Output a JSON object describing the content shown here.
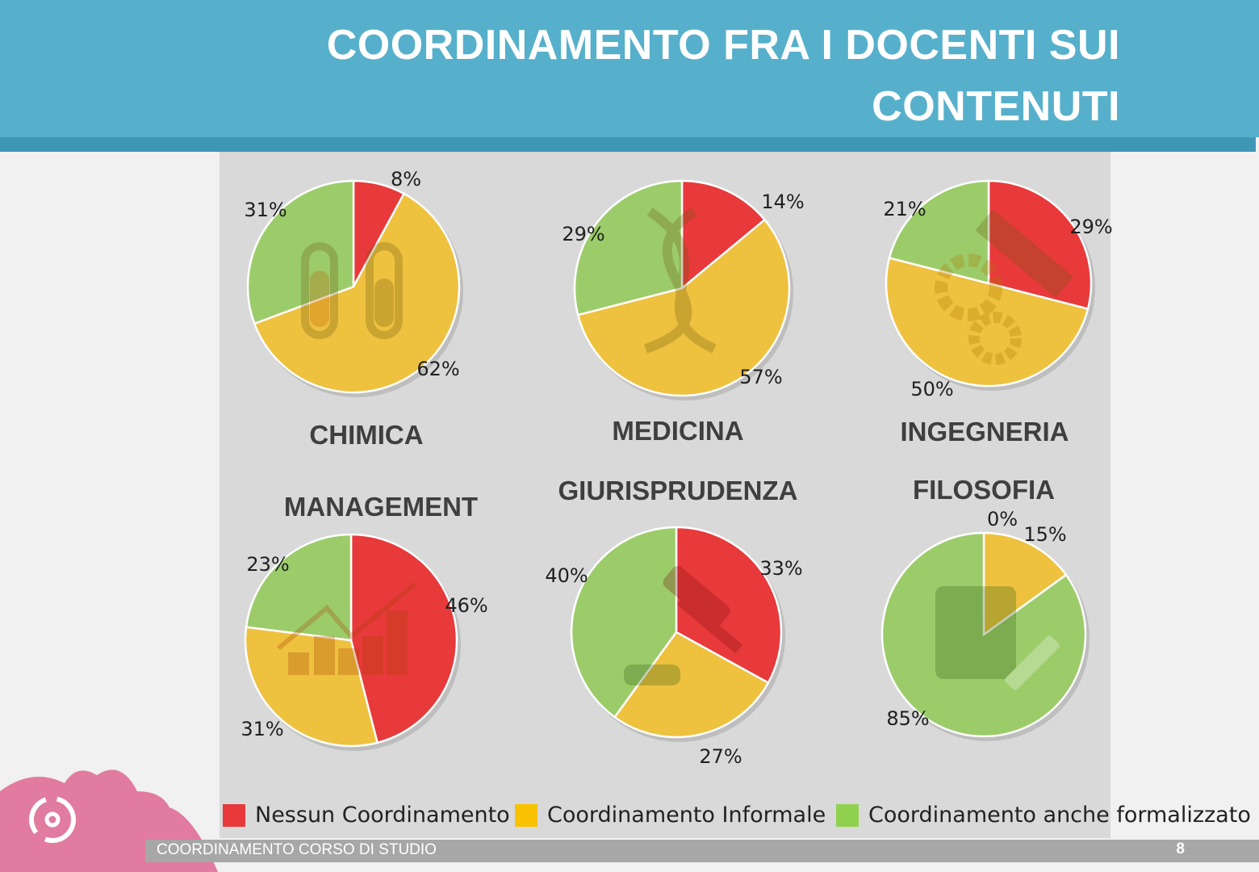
{
  "header": {
    "title_line1": "COORDINAMENTO FRA I DOCENTI SUI",
    "title_line2": "CONTENUTI"
  },
  "colors": {
    "header": "#56b0cb",
    "red": "#e8393b",
    "yellow": "#eec13f",
    "green": "#9ccc6a"
  },
  "chart_data": [
    {
      "type": "pie",
      "title": "CHIMICA",
      "labels": [
        "Nessun Coordinamento",
        "Coordinamento Informale",
        "Coordinamento anche formalizzato"
      ],
      "values": [
        8,
        62,
        31
      ],
      "value_labels": [
        "8%",
        "62%",
        "31%"
      ],
      "icon": "test-tubes-icon"
    },
    {
      "type": "pie",
      "title": "MEDICINA",
      "labels": [
        "Nessun Coordinamento",
        "Coordinamento Informale",
        "Coordinamento anche formalizzato"
      ],
      "values": [
        14,
        57,
        29
      ],
      "value_labels": [
        "14%",
        "57%",
        "29%"
      ],
      "icon": "dna-icon"
    },
    {
      "type": "pie",
      "title": "INGEGNERIA",
      "labels": [
        "Nessun Coordinamento",
        "Coordinamento Informale",
        "Coordinamento anche formalizzato"
      ],
      "values": [
        29,
        50,
        21
      ],
      "value_labels": [
        "29%",
        "50%",
        "21%"
      ],
      "icon": "gears-ruler-icon"
    },
    {
      "type": "pie",
      "title": "MANAGEMENT",
      "labels": [
        "Nessun Coordinamento",
        "Coordinamento Informale",
        "Coordinamento anche formalizzato"
      ],
      "values": [
        46,
        31,
        23
      ],
      "value_labels": [
        "46%",
        "31%",
        "23%"
      ],
      "icon": "growth-chart-icon"
    },
    {
      "type": "pie",
      "title": "GIURISPRUDENZA",
      "labels": [
        "Nessun Coordinamento",
        "Coordinamento Informale",
        "Coordinamento anche formalizzato"
      ],
      "values": [
        33,
        27,
        40
      ],
      "value_labels": [
        "33%",
        "27%",
        "40%"
      ],
      "icon": "gavel-icon"
    },
    {
      "type": "pie",
      "title": "FILOSOFIA",
      "labels": [
        "Nessun Coordinamento",
        "Coordinamento Informale",
        "Coordinamento anche formalizzato"
      ],
      "values": [
        0,
        15,
        85
      ],
      "value_labels": [
        "0%",
        "15%",
        "85%"
      ],
      "icon": "book-pencil-icon"
    }
  ],
  "legend": [
    {
      "label": "Nessun Coordinamento",
      "color": "#e8393b"
    },
    {
      "label": "Coordinamento Informale",
      "color": "#eec13f"
    },
    {
      "label": "Coordinamento anche formalizzato",
      "color": "#9ccc6a"
    }
  ],
  "footer": {
    "text": "COORDINAMENTO  CORSO DI STUDIO",
    "page_number": "8"
  }
}
